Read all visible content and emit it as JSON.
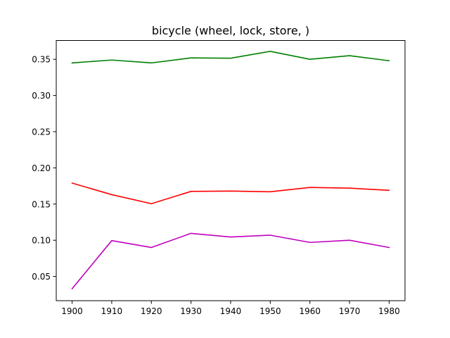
{
  "chart_data": {
    "type": "line",
    "title": "bicycle (wheel, lock, store, )",
    "xlabel": "",
    "ylabel": "",
    "x": [
      1900,
      1910,
      1920,
      1930,
      1940,
      1950,
      1960,
      1970,
      1980
    ],
    "xticks": [
      "1900",
      "1910",
      "1920",
      "1930",
      "1940",
      "1950",
      "1960",
      "1970",
      "1980"
    ],
    "yticks": [
      "0.05",
      "0.10",
      "0.15",
      "0.20",
      "0.25",
      "0.30",
      "0.35"
    ],
    "ytick_values": [
      0.05,
      0.1,
      0.15,
      0.2,
      0.25,
      0.3,
      0.35
    ],
    "xlim": [
      1896,
      1984
    ],
    "ylim": [
      0.0165,
      0.376
    ],
    "grid": false,
    "legend": "none",
    "series": [
      {
        "color": "#008000",
        "values": [
          0.345,
          0.349,
          0.345,
          0.352,
          0.3515,
          0.361,
          0.35,
          0.355,
          0.348
        ]
      },
      {
        "color": "#ff0000",
        "values": [
          0.179,
          0.163,
          0.1505,
          0.1675,
          0.168,
          0.167,
          0.173,
          0.172,
          0.169
        ]
      },
      {
        "color": "#bf00bf",
        "values": [
          0.033,
          0.0995,
          0.09,
          0.1095,
          0.1045,
          0.107,
          0.097,
          0.1,
          0.09
        ]
      }
    ]
  }
}
